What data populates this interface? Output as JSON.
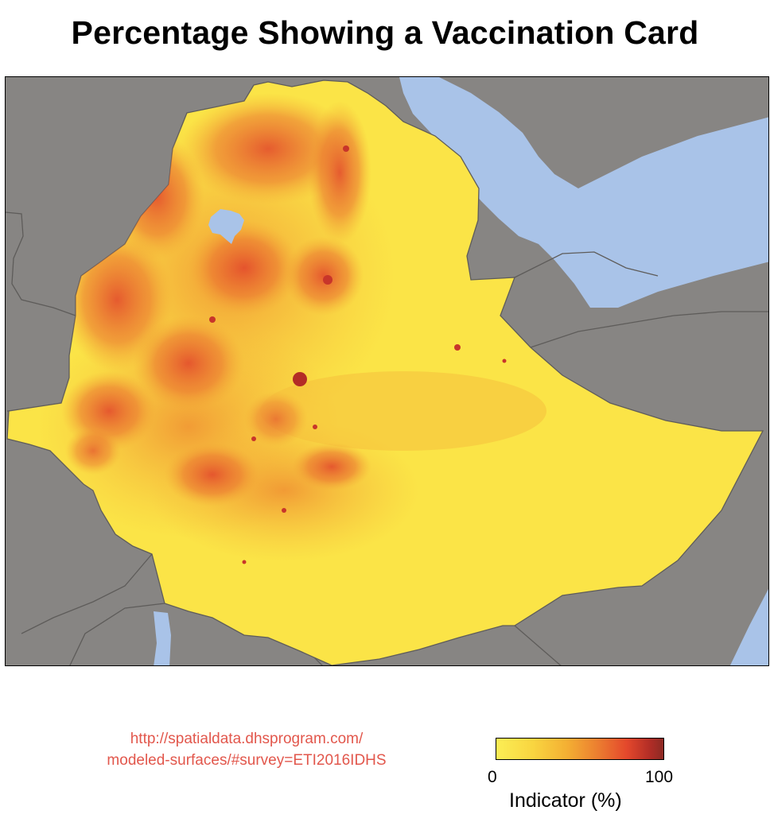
{
  "title": "Percentage Showing a Vaccination Card",
  "source": {
    "line1": "http://spatialdata.dhsprogram.com/",
    "line2": "modeled-surfaces/#survey=ETI2016IDHS"
  },
  "legend": {
    "title": "Indicator (%)",
    "min_label": "0",
    "max_label": "100",
    "range": [
      0,
      100
    ],
    "color_low": "#fbee55",
    "color_high": "#8c2a24"
  },
  "colors": {
    "land": "#878583",
    "water": "#a9c3e8",
    "borders": "#5e5c5a",
    "surface_low": "#fbe447",
    "surface_mid": "#f3a534",
    "surface_high": "#e24b2b",
    "source_text": "#e2574c"
  }
}
